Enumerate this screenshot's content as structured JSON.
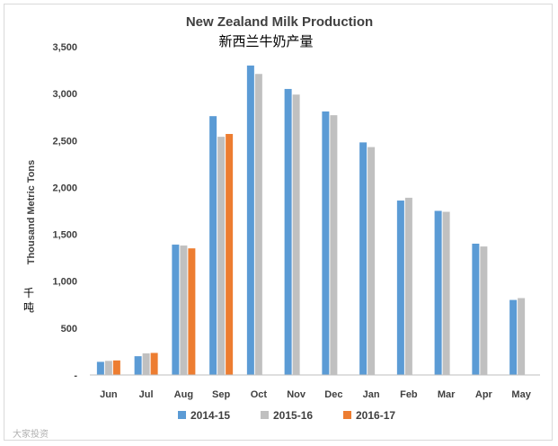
{
  "chart_data": {
    "type": "bar",
    "title": "New Zealand Milk Production",
    "subtitle": "新西兰牛奶产量",
    "ylabel": "Thousand Metric Tons",
    "ylabel_cn": "千吨",
    "xlabel": "",
    "categories": [
      "Jun",
      "Jul",
      "Aug",
      "Sep",
      "Oct",
      "Nov",
      "Dec",
      "Jan",
      "Feb",
      "Mar",
      "Apr",
      "May"
    ],
    "ylim": [
      0,
      3500
    ],
    "yticks": [
      0,
      500,
      1000,
      1500,
      2000,
      2500,
      3000,
      3500
    ],
    "ytick_labels": [
      "-",
      "500",
      "1,000",
      "1,500",
      "2,000",
      "2,500",
      "3,000",
      "3,500"
    ],
    "grid": false,
    "legend_position": "bottom",
    "series": [
      {
        "name": "2014-15",
        "color": "#5b9bd5",
        "values": [
          140,
          200,
          1390,
          2760,
          3300,
          3050,
          2810,
          2480,
          1860,
          1750,
          1400,
          800
        ]
      },
      {
        "name": "2015-16",
        "color": "#c0c0c0",
        "values": [
          150,
          230,
          1380,
          2540,
          3210,
          2990,
          2770,
          2430,
          1890,
          1740,
          1370,
          820
        ]
      },
      {
        "name": "2016-17",
        "color": "#ed7d31",
        "values": [
          155,
          235,
          1350,
          2570,
          null,
          null,
          null,
          null,
          null,
          null,
          null,
          null
        ]
      }
    ]
  },
  "watermark": "大家投资"
}
